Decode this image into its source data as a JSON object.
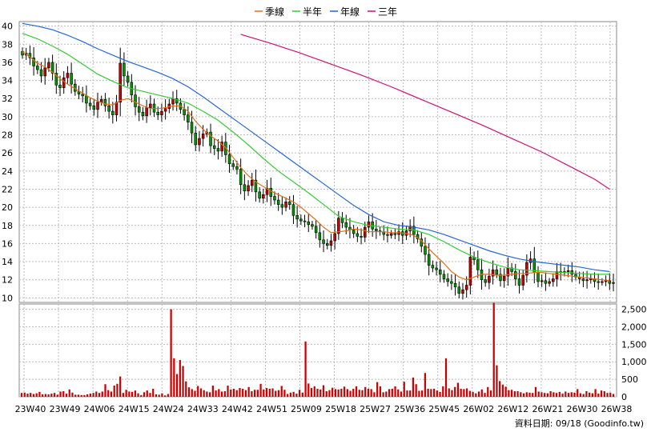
{
  "chart_data": [
    {
      "type": "candlestick",
      "title": "",
      "legend": {
        "placement": "top-center",
        "entries": [
          {
            "name": "季線",
            "color": "#e0701a"
          },
          {
            "name": "半年",
            "color": "#33cc33"
          },
          {
            "name": "年線",
            "color": "#2266dd"
          },
          {
            "name": "三年",
            "color": "#cc1177"
          }
        ]
      },
      "x_tick_labels": [
        "23W40",
        "23W49",
        "24W06",
        "24W15",
        "24W24",
        "24W33",
        "24W42",
        "24W51",
        "25W09",
        "25W18",
        "25W27",
        "25W36",
        "25W45",
        "26W02",
        "26W12",
        "26W21",
        "26W30",
        "26W38"
      ],
      "y_ticks": [
        10,
        12,
        14,
        16,
        18,
        20,
        22,
        24,
        26,
        28,
        30,
        32,
        34,
        36,
        38,
        40
      ],
      "ylim": [
        9.5,
        40.5
      ],
      "y_axis_side": "left",
      "grid": true,
      "up_color": "#cc0000",
      "down_color": "#009900",
      "weekly_close": [
        36.8,
        37.0,
        36.5,
        35.6,
        35.2,
        34.5,
        35.4,
        36.0,
        34.8,
        33.5,
        33.2,
        34.3,
        34.8,
        33.6,
        32.8,
        32.5,
        32.3,
        31.5,
        31.2,
        30.8,
        31.6,
        31.9,
        31.2,
        30.6,
        30.2,
        31.6,
        35.9,
        34.5,
        33.8,
        32.4,
        31.1,
        30.5,
        30.1,
        31.0,
        31.4,
        30.5,
        30.2,
        30.6,
        30.9,
        31.4,
        32.0,
        31.5,
        30.8,
        30.2,
        29.4,
        28.2,
        26.9,
        27.6,
        28.1,
        28.3,
        26.8,
        26.5,
        26.2,
        27.2,
        25.8,
        24.8,
        24.5,
        24.2,
        22.5,
        21.8,
        22.4,
        23.0,
        21.7,
        21.0,
        21.4,
        22.1,
        21.2,
        20.8,
        20.3,
        20.0,
        20.6,
        20.3,
        19.1,
        18.7,
        18.5,
        18.4,
        18.1,
        17.9,
        17.2,
        16.4,
        16.0,
        15.8,
        16.3,
        17.1,
        18.8,
        18.3,
        17.8,
        17.5,
        17.1,
        16.8,
        16.7,
        17.8,
        18.4,
        17.6,
        17.4,
        17.3,
        17.0,
        16.9,
        17.1,
        17.0,
        17.3,
        16.9,
        17.4,
        17.9,
        17.0,
        16.5,
        15.7,
        14.8,
        13.6,
        13.3,
        13.1,
        12.6,
        12.1,
        11.8,
        11.6,
        11.2,
        10.5,
        10.9,
        11.4,
        14.5,
        14.2,
        13.1,
        12.0,
        11.7,
        12.4,
        13.1,
        12.6,
        11.9,
        12.4,
        13.3,
        12.9,
        12.1,
        11.4,
        12.5,
        13.9,
        14.3,
        12.8,
        11.8,
        11.9,
        11.6,
        11.8,
        12.1,
        12.9,
        12.8,
        12.9,
        13.0,
        12.6,
        12.3,
        12.1,
        11.9,
        12.0,
        12.1,
        11.8,
        11.7,
        11.8,
        11.9,
        11.6,
        11.7
      ],
      "series": [
        {
          "name": "季線",
          "x": [
            0,
            2,
            4,
            6,
            8,
            10,
            12,
            14,
            16,
            18,
            20,
            22,
            24,
            26,
            28,
            30,
            32,
            34,
            36,
            38,
            40,
            42,
            44,
            46,
            48,
            50,
            52,
            54,
            56,
            58,
            60,
            62,
            64,
            66,
            68,
            70,
            72,
            74,
            76,
            78,
            80,
            82,
            84,
            86,
            88,
            90,
            92,
            94,
            96,
            98,
            100,
            102,
            104,
            106,
            108,
            110,
            112,
            114,
            116,
            118,
            120,
            122,
            124,
            126,
            128,
            130,
            132,
            134,
            136,
            138,
            140,
            142,
            144,
            146,
            148,
            150,
            152,
            154,
            156
          ],
          "values": [
            37.2,
            36.6,
            35.9,
            35.5,
            34.9,
            34.2,
            33.6,
            33.1,
            32.6,
            32.1,
            31.7,
            31.4,
            31.3,
            31.8,
            32.0,
            31.6,
            31.2,
            30.9,
            30.9,
            31.0,
            31.2,
            31.2,
            30.6,
            29.5,
            28.6,
            27.9,
            27.3,
            26.6,
            25.5,
            24.4,
            23.5,
            22.8,
            22.3,
            21.8,
            21.4,
            21.0,
            20.6,
            20.0,
            19.3,
            18.6,
            17.8,
            17.2,
            17.3,
            17.4,
            17.6,
            17.5,
            17.3,
            17.3,
            17.3,
            17.2,
            17.2,
            17.1,
            16.9,
            16.3,
            15.4,
            14.6,
            13.8,
            12.9,
            12.3,
            12.0,
            12.3,
            12.6,
            12.6,
            12.5,
            12.5,
            12.6,
            12.7,
            12.7,
            12.8,
            12.8,
            12.7,
            12.6,
            12.5,
            12.4,
            12.3,
            12.2,
            12.1,
            12.0,
            11.9
          ]
        },
        {
          "name": "半年",
          "x": [
            0,
            4,
            8,
            12,
            16,
            20,
            24,
            28,
            32,
            36,
            40,
            44,
            48,
            52,
            56,
            60,
            64,
            68,
            72,
            76,
            80,
            84,
            88,
            92,
            96,
            100,
            104,
            108,
            112,
            116,
            120,
            124,
            128,
            132,
            136,
            140,
            144,
            148,
            152,
            156
          ],
          "values": [
            39.2,
            38.6,
            37.8,
            36.9,
            35.8,
            34.7,
            33.9,
            33.2,
            32.8,
            32.4,
            32.0,
            31.5,
            30.6,
            29.6,
            28.3,
            26.9,
            25.4,
            24.0,
            22.8,
            21.6,
            20.3,
            19.0,
            18.4,
            18.0,
            17.8,
            17.6,
            17.5,
            17.0,
            16.2,
            15.3,
            14.5,
            13.9,
            13.4,
            13.1,
            13.0,
            12.9,
            12.8,
            12.7,
            12.6,
            12.6
          ]
        },
        {
          "name": "年線",
          "x": [
            0,
            4,
            8,
            12,
            16,
            20,
            24,
            28,
            32,
            36,
            40,
            44,
            48,
            52,
            56,
            60,
            64,
            68,
            72,
            76,
            80,
            84,
            88,
            92,
            96,
            100,
            104,
            108,
            112,
            116,
            120,
            124,
            128,
            132,
            136,
            140,
            144,
            148,
            152,
            156
          ],
          "values": [
            40.3,
            40.0,
            39.6,
            39.0,
            38.3,
            37.5,
            36.8,
            36.1,
            35.5,
            34.9,
            34.2,
            33.3,
            32.2,
            31.0,
            29.8,
            28.6,
            27.4,
            26.2,
            25.0,
            23.8,
            22.6,
            21.4,
            20.2,
            19.2,
            18.4,
            18.0,
            17.8,
            17.5,
            17.0,
            16.4,
            15.8,
            15.2,
            14.7,
            14.3,
            14.0,
            13.8,
            13.6,
            13.4,
            13.1,
            12.9
          ]
        },
        {
          "name": "三年",
          "x": [
            58,
            66,
            74,
            82,
            90,
            98,
            106,
            114,
            122,
            130,
            138,
            146,
            152,
            156
          ],
          "values": [
            39.1,
            38.1,
            37.0,
            35.8,
            34.6,
            33.3,
            31.9,
            30.5,
            29.1,
            27.6,
            26.1,
            24.4,
            23.1,
            22.0
          ]
        }
      ]
    },
    {
      "type": "bar",
      "name": "",
      "color": "#cc0000",
      "y_ticks": [
        0,
        500,
        1000,
        1500,
        2000,
        2500
      ],
      "y_tick_labels": [
        "0",
        "500",
        "1,000",
        "1,500",
        "2,000",
        "2,500"
      ],
      "ylim": [
        0,
        2650
      ],
      "y_axis_side": "right",
      "grid": true,
      "values": [
        110,
        120,
        90,
        110,
        80,
        100,
        140,
        70,
        80,
        70,
        90,
        110,
        60,
        150,
        160,
        90,
        210,
        120,
        60,
        60,
        50,
        50,
        70,
        90,
        110,
        150,
        110,
        150,
        360,
        190,
        150,
        320,
        370,
        580,
        110,
        200,
        150,
        140,
        180,
        100,
        50,
        130,
        180,
        110,
        230,
        70,
        60,
        100,
        40,
        80,
        2500,
        1100,
        650,
        1050,
        880,
        440,
        270,
        220,
        170,
        310,
        240,
        190,
        150,
        130,
        320,
        180,
        220,
        150,
        160,
        320,
        210,
        230,
        190,
        250,
        230,
        190,
        280,
        160,
        200,
        200,
        370,
        210,
        250,
        230,
        240,
        170,
        190,
        310,
        200,
        80,
        120,
        140,
        90,
        200,
        120,
        1580,
        380,
        250,
        300,
        230,
        210,
        330,
        160,
        190,
        260,
        220,
        210,
        230,
        290,
        220,
        170,
        230,
        300,
        200,
        190,
        280,
        230,
        220,
        130,
        420,
        300,
        130,
        150,
        220,
        230,
        300,
        210,
        150,
        430,
        180,
        180,
        550,
        360,
        170,
        180,
        680,
        230,
        220,
        230,
        180,
        140,
        300,
        1100,
        240,
        190,
        280,
        400,
        230,
        220,
        240,
        170,
        140,
        100,
        150,
        210,
        110,
        280,
        180,
        2680,
        900,
        450,
        350,
        290,
        190,
        200,
        160,
        160,
        130,
        100,
        130,
        120,
        110,
        280,
        150,
        130,
        110,
        100,
        160,
        130,
        110,
        140,
        90,
        150,
        110,
        130,
        120,
        220,
        100,
        80,
        160,
        120,
        100,
        220,
        90,
        180,
        160,
        110,
        120,
        80
      ]
    }
  ],
  "credit": "資料日期: 09/18  (Goodinfo.tw)"
}
